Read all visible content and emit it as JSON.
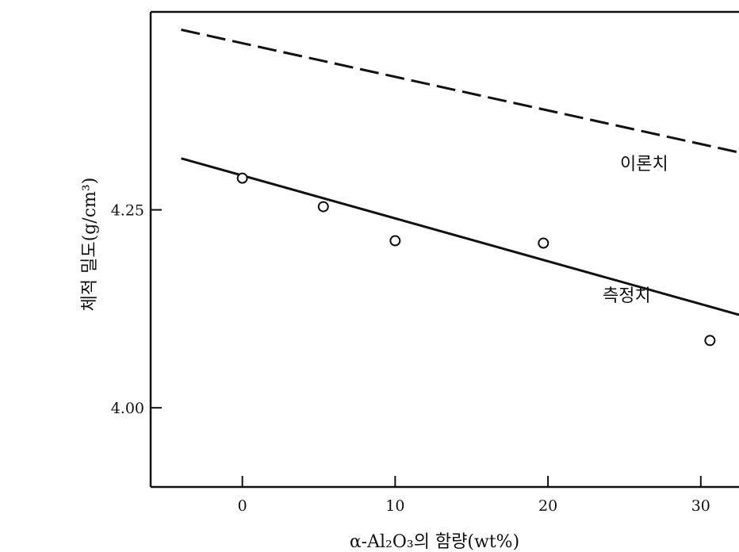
{
  "chart_data": {
    "type": "line",
    "xlabel": "α-Al₂O₃의 함량(wt%)",
    "ylabel": "체적 밀도(g/cm³)",
    "xlim": [
      -6,
      32.5
    ],
    "ylim": [
      3.9,
      4.5
    ],
    "x_ticks": [
      0,
      10,
      20,
      30
    ],
    "x_tick_labels": [
      "0",
      "10",
      "20",
      "30"
    ],
    "y_ticks": [
      4.0,
      4.25,
      4.5
    ],
    "y_tick_labels": [
      "4.00",
      "4.25",
      ""
    ],
    "grid": false,
    "series": [
      {
        "name": "이론치",
        "style": "dashed",
        "color": "#111111",
        "x": [
          -4,
          32.5
        ],
        "y": [
          4.4775,
          4.3225
        ]
      },
      {
        "name": "측정치",
        "style": "solid",
        "color": "#111111",
        "x": [
          -4,
          32.5
        ],
        "y": [
          4.315,
          4.1175
        ]
      }
    ],
    "points": [
      {
        "x": 0,
        "y": 4.29
      },
      {
        "x": 5.3,
        "y": 4.254
      },
      {
        "x": 10,
        "y": 4.211
      },
      {
        "x": 19.7,
        "y": 4.208
      },
      {
        "x": 30.6,
        "y": 4.085
      }
    ]
  }
}
